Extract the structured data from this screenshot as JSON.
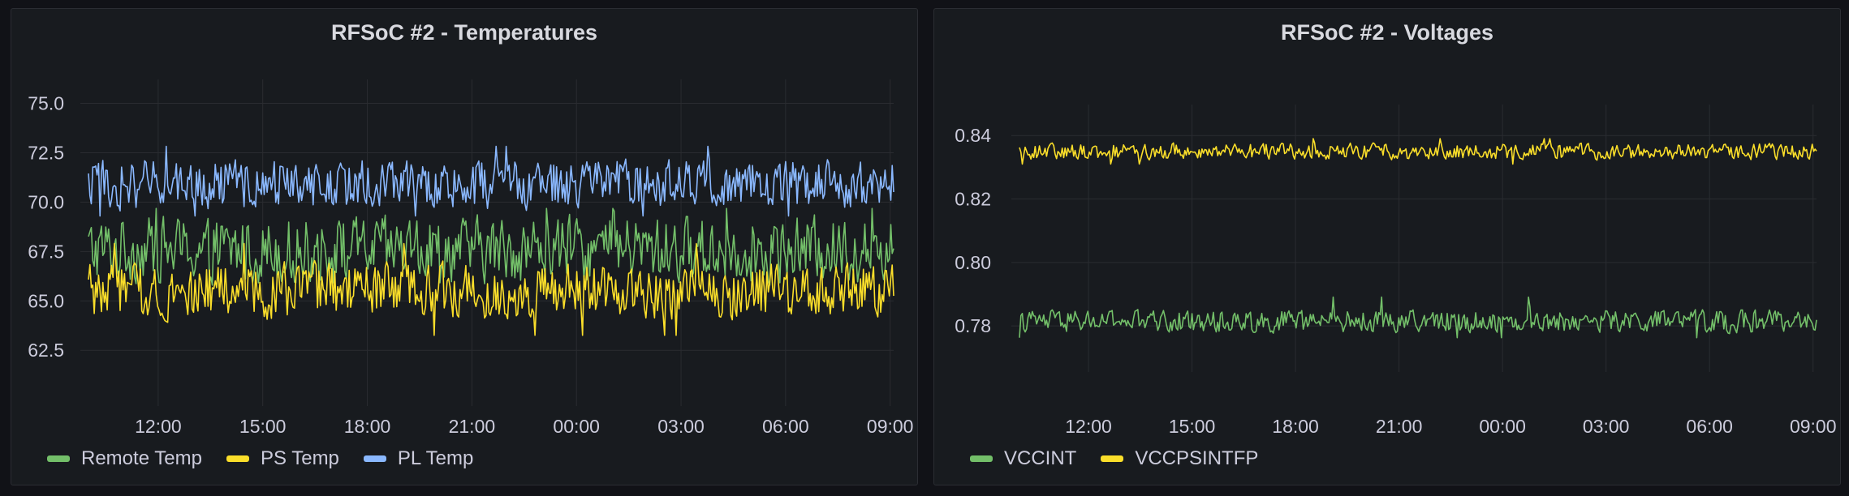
{
  "colors": {
    "background": "#111217",
    "panel": "#181b1f",
    "grid": "#2a2c31",
    "text": "#ccccdc",
    "green": "#73bf69",
    "yellow": "#fade2a",
    "blue": "#8ab8ff"
  },
  "panels": [
    {
      "title": "RFSoC #2 - Temperatures",
      "legend": [
        "Remote Temp",
        "PS Temp",
        "PL Temp"
      ]
    },
    {
      "title": "RFSoC #2 - Voltages",
      "legend": [
        "VCCINT",
        "VCCPSINTFP"
      ]
    }
  ],
  "chart_data": [
    {
      "type": "line",
      "title": "RFSoC #2 - Temperatures",
      "xlabel": "",
      "ylabel": "",
      "x_ticks": [
        "12:00",
        "15:00",
        "18:00",
        "21:00",
        "00:00",
        "03:00",
        "06:00",
        "09:00"
      ],
      "x_range_hours": [
        10.0,
        33.1
      ],
      "y_ticks": [
        62.5,
        65.0,
        67.5,
        70.0,
        72.5,
        75.0
      ],
      "ylim": [
        60.5,
        75.8
      ],
      "grid": true,
      "legend_position": "bottom-left",
      "series": [
        {
          "name": "Remote Temp",
          "color": "#73bf69",
          "mean": 67.6,
          "amplitude": 1.2,
          "range": [
            65.5,
            70.2
          ]
        },
        {
          "name": "PS Temp",
          "color": "#fade2a",
          "mean": 65.5,
          "amplitude": 1.0,
          "range": [
            62.7,
            68.5
          ]
        },
        {
          "name": "PL Temp",
          "color": "#8ab8ff",
          "mean": 70.9,
          "amplitude": 0.9,
          "range": [
            68.9,
            73.3
          ]
        }
      ]
    },
    {
      "type": "line",
      "title": "RFSoC #2 - Voltages",
      "xlabel": "",
      "ylabel": "",
      "x_ticks": [
        "12:00",
        "15:00",
        "18:00",
        "21:00",
        "00:00",
        "03:00",
        "06:00",
        "09:00"
      ],
      "x_range_hours": [
        10.0,
        33.1
      ],
      "y_ticks": [
        0.78,
        0.8,
        0.82,
        0.84
      ],
      "y_tick_labels": [
        "0.78",
        "0.80",
        "0.82",
        "0.84"
      ],
      "ylim": [
        0.7706,
        0.8472
      ],
      "grid": true,
      "legend_position": "bottom-left",
      "series": [
        {
          "name": "VCCINT",
          "color": "#73bf69",
          "mean": 0.7815,
          "amplitude": 0.0025,
          "range": [
            0.775,
            0.791
          ]
        },
        {
          "name": "VCCPSINTFP",
          "color": "#fade2a",
          "mean": 0.835,
          "amplitude": 0.0018,
          "range": [
            0.83,
            0.84
          ]
        }
      ]
    }
  ]
}
